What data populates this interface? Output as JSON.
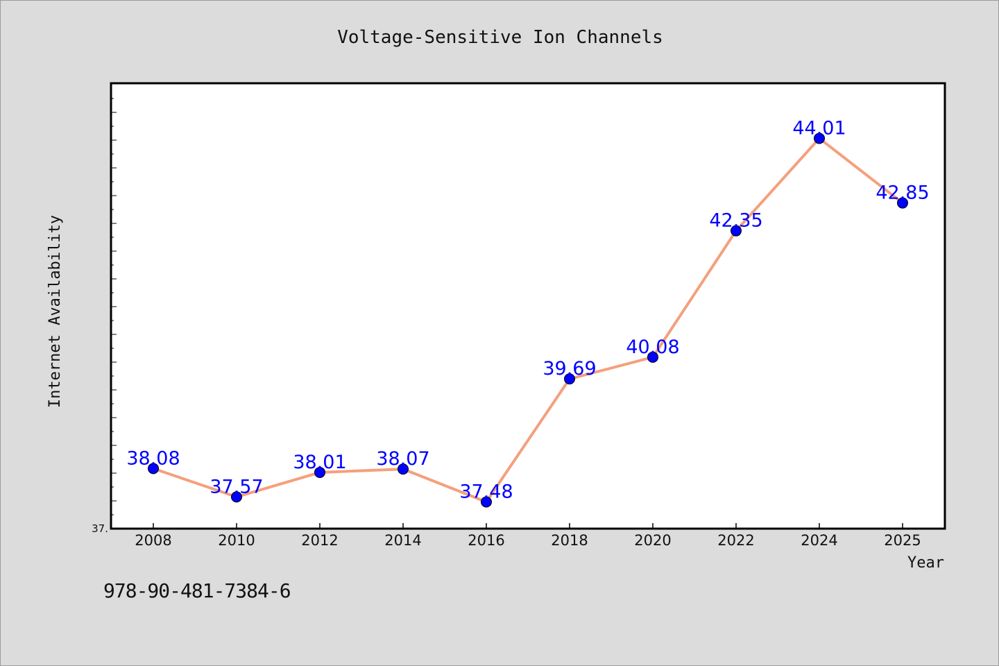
{
  "chart_data": {
    "type": "line",
    "title": "Voltage-Sensitive Ion Channels",
    "xlabel": "Year",
    "ylabel": "Internet Availability",
    "categories": [
      "2008",
      "2010",
      "2012",
      "2014",
      "2016",
      "2018",
      "2020",
      "2022",
      "2024",
      "2025"
    ],
    "series": [
      {
        "values": [
          38.08,
          37.57,
          38.01,
          38.07,
          37.48,
          39.69,
          40.08,
          42.35,
          44.01,
          42.85
        ],
        "labels": [
          "38.08",
          "37.57",
          "38.01",
          "38.07",
          "37.48",
          "39.69",
          "40.08",
          "42.35",
          "44.01",
          "42.85"
        ]
      }
    ],
    "ylim": [
      37.0,
      45.0
    ],
    "y_tick_label": "37.",
    "grid": false,
    "legend": "none",
    "colors": {
      "line": "#f4a07d",
      "marker": "#0000ff",
      "label": "#0000ff",
      "plot_bg": "#ffffff",
      "figure_bg": "#dcdcdc"
    }
  },
  "footer": {
    "code": "978-90-481-7384-6"
  }
}
